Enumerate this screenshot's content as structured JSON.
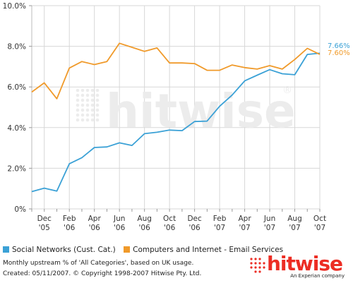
{
  "chart_data": {
    "type": "line",
    "x": [
      "Nov '05",
      "Dec '05",
      "Jan '06",
      "Feb '06",
      "Mar '06",
      "Apr '06",
      "May '06",
      "Jun '06",
      "Jul '06",
      "Aug '06",
      "Sep '06",
      "Oct '06",
      "Nov '06",
      "Dec '06",
      "Jan '07",
      "Feb '07",
      "Mar '07",
      "Apr '07",
      "May '07",
      "Jun '07",
      "Jul '07",
      "Aug '07",
      "Sep '07",
      "Oct '07"
    ],
    "series": [
      {
        "name": "Social Networks (Cust. Cat.)",
        "color": "#3ba1d6",
        "values": [
          0.85,
          1.02,
          0.88,
          2.22,
          2.52,
          3.02,
          3.05,
          3.25,
          3.12,
          3.7,
          3.77,
          3.88,
          3.85,
          4.3,
          4.32,
          5.05,
          5.6,
          6.3,
          6.58,
          6.85,
          6.65,
          6.6,
          7.6,
          7.66
        ]
      },
      {
        "name": "Computers and Internet - Email Services",
        "color": "#f09a2a",
        "values": [
          5.75,
          6.2,
          5.42,
          6.93,
          7.25,
          7.1,
          7.25,
          8.15,
          7.95,
          7.75,
          7.92,
          7.18,
          7.18,
          7.15,
          6.82,
          6.82,
          7.08,
          6.95,
          6.88,
          7.05,
          6.88,
          7.35,
          7.9,
          7.6
        ]
      }
    ],
    "y_ticks": [
      "0%",
      "2.0%",
      "4.0%",
      "6.0%",
      "8.0%",
      "10.0%"
    ],
    "ylim": [
      0,
      10
    ],
    "x_tick_labels": [
      {
        "month": "Dec",
        "year": "'05"
      },
      {
        "month": "Feb",
        "year": "'06"
      },
      {
        "month": "Apr",
        "year": "'06"
      },
      {
        "month": "Jun",
        "year": "'06"
      },
      {
        "month": "Aug",
        "year": "'06"
      },
      {
        "month": "Oct",
        "year": "'06"
      },
      {
        "month": "Dec",
        "year": "'06"
      },
      {
        "month": "Feb",
        "year": "'07"
      },
      {
        "month": "Apr",
        "year": "'07"
      },
      {
        "month": "Jun",
        "year": "'07"
      },
      {
        "month": "Aug",
        "year": "'07"
      },
      {
        "month": "Oct",
        "year": "'07"
      }
    ],
    "end_labels": [
      "7.66%",
      "7.60%"
    ],
    "grid": true,
    "legend_position": "bottom",
    "watermark": "hitwise"
  },
  "legend": {
    "series1": "Social Networks (Cust. Cat.)",
    "series2": "Computers and Internet - Email Services"
  },
  "footnote": {
    "line1": "Monthly upstream % of 'All Categories', based on UK usage.",
    "line2": "Created: 05/11/2007. © Copyright 1998-2007 Hitwise Pty. Ltd."
  },
  "logo": {
    "name": "hitwise",
    "tagline": "An Experian company",
    "color": "#ec2d24"
  }
}
